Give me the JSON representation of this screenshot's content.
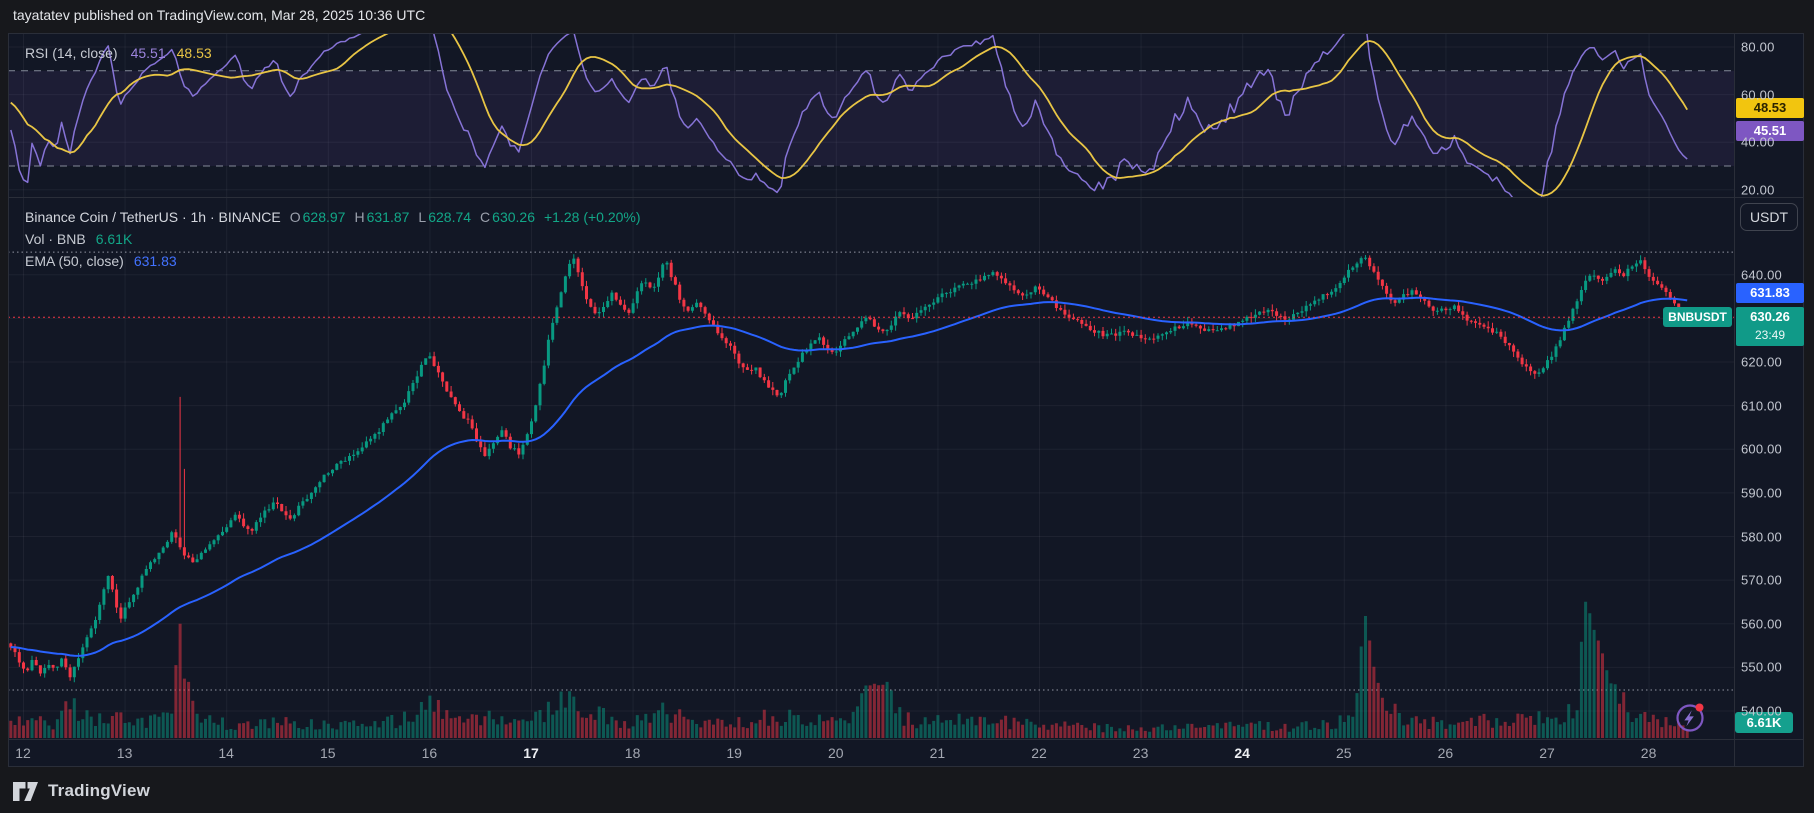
{
  "header": {
    "published_line": "tayatatev published on TradingView.com, Mar 28, 2025 10:36 UTC"
  },
  "background": {
    "outer": "#17181c",
    "chart": "#121725"
  },
  "colors": {
    "up": "#089981",
    "down": "#f23645",
    "ema": "#2962ff",
    "rsi_line": "#8673d6",
    "rsi_ma": "#e8c545",
    "price_line": "#f23645",
    "badge_blue": "#2962ff",
    "badge_green": "#109a88",
    "badge_purple": "#7e57c2",
    "badge_yellow": "#f2c50f",
    "grid": "rgba(240,243,250,0.055)"
  },
  "rsi_pane": {
    "legend": {
      "title": "RSI (14, close)",
      "value": "45.51",
      "ma_value": "48.53"
    },
    "axis_labels": [
      "80.00",
      "60.00",
      "40.00",
      "20.00"
    ],
    "axis_values": [
      80,
      60,
      40,
      20
    ],
    "badges": {
      "ma": {
        "text": "48.53",
        "bg": "#f2c50f",
        "fg": "#2b2300"
      },
      "rsi": {
        "text": "45.51",
        "bg": "#7e57c2",
        "fg": "#ffffff"
      }
    },
    "levels": {
      "upper": 70,
      "lower": 30
    }
  },
  "main_pane": {
    "legend_symbol": {
      "title": "Binance Coin / TetherUS · 1h · BINANCE",
      "open_label": "O",
      "open": "628.97",
      "high_label": "H",
      "high": "631.87",
      "low_label": "L",
      "low": "628.74",
      "close_label": "C",
      "close": "630.26",
      "change": "+1.28 (+0.20%)"
    },
    "legend_vol": {
      "label": "Vol · BNB",
      "value": "6.61K"
    },
    "legend_ema": {
      "label": "EMA (50, close)",
      "value": "631.83"
    },
    "currency_button": "USDT",
    "axis_labels": [
      "640.00",
      "620.00",
      "610.00",
      "600.00",
      "590.00",
      "580.00",
      "570.00",
      "560.00",
      "550.00",
      "540.00"
    ],
    "axis_values": [
      640,
      620,
      610,
      600,
      590,
      580,
      570,
      560,
      550,
      540
    ],
    "badges": {
      "ema": {
        "text": "631.83",
        "bg": "#2962ff"
      },
      "price": {
        "symbol": "BNBUSDT",
        "text": "630.26",
        "countdown": "23:49",
        "bg": "#109a88"
      },
      "volume": {
        "text": "6.61K",
        "bg": "#15a08e"
      }
    }
  },
  "time_axis": {
    "labels": [
      {
        "label": "12",
        "bold": false
      },
      {
        "label": "13",
        "bold": false
      },
      {
        "label": "14",
        "bold": false
      },
      {
        "label": "15",
        "bold": false
      },
      {
        "label": "16",
        "bold": false
      },
      {
        "label": "17",
        "bold": true
      },
      {
        "label": "18",
        "bold": false
      },
      {
        "label": "19",
        "bold": false
      },
      {
        "label": "20",
        "bold": false
      },
      {
        "label": "21",
        "bold": false
      },
      {
        "label": "22",
        "bold": false
      },
      {
        "label": "23",
        "bold": false
      },
      {
        "label": "24",
        "bold": true
      },
      {
        "label": "25",
        "bold": false
      },
      {
        "label": "26",
        "bold": false
      },
      {
        "label": "27",
        "bold": false
      },
      {
        "label": "28",
        "bold": false
      }
    ]
  },
  "footer": {
    "brand": "TradingView"
  },
  "chart_data": {
    "type": "candlestick",
    "symbol": "BNBUSDT",
    "exchange": "BINANCE",
    "interval": "1h",
    "current_ohlc": {
      "open": 628.97,
      "high": 631.87,
      "low": 628.74,
      "close": 630.26,
      "change": 1.28,
      "change_pct": 0.2
    },
    "current_volume": "6.61K",
    "ema": {
      "period": 50,
      "source": "close",
      "last": 631.83
    },
    "rsi": {
      "period": 14,
      "source": "close",
      "last": 45.51,
      "ma_last": 48.53,
      "upper_band": 70,
      "lower_band": 30,
      "axis_range": [
        17,
        86
      ]
    },
    "x_unit": "day of March 2025",
    "x_range": [
      11.88,
      28.42
    ],
    "visible_price_range": [
      533.5,
      657.0
    ],
    "price_line": 630.26,
    "range_dotted_lines": [
      645.2,
      544.8
    ],
    "price_anchors": [
      [
        11.88,
        556
      ],
      [
        11.96,
        553.5
      ],
      [
        12.02,
        551
      ],
      [
        12.08,
        549
      ],
      [
        12.14,
        552
      ],
      [
        12.2,
        548.5
      ],
      [
        12.28,
        551
      ],
      [
        12.36,
        549
      ],
      [
        12.42,
        552
      ],
      [
        12.5,
        547.5
      ],
      [
        12.58,
        552
      ],
      [
        12.66,
        556
      ],
      [
        12.74,
        560
      ],
      [
        12.82,
        566
      ],
      [
        12.88,
        571
      ],
      [
        12.94,
        566
      ],
      [
        13.0,
        561
      ],
      [
        13.06,
        564
      ],
      [
        13.14,
        567
      ],
      [
        13.22,
        571
      ],
      [
        13.3,
        574
      ],
      [
        13.38,
        576
      ],
      [
        13.46,
        579
      ],
      [
        13.52,
        581
      ],
      [
        13.58,
        578
      ],
      [
        13.64,
        575.5
      ],
      [
        13.72,
        574
      ],
      [
        13.8,
        576
      ],
      [
        13.88,
        578
      ],
      [
        13.96,
        580
      ],
      [
        14.04,
        582
      ],
      [
        14.12,
        585
      ],
      [
        14.2,
        583
      ],
      [
        14.28,
        581
      ],
      [
        14.36,
        584
      ],
      [
        14.44,
        586
      ],
      [
        14.52,
        588
      ],
      [
        14.6,
        585.5
      ],
      [
        14.68,
        584
      ],
      [
        14.76,
        587
      ],
      [
        14.84,
        589
      ],
      [
        14.92,
        591
      ],
      [
        15.0,
        594
      ],
      [
        15.1,
        596
      ],
      [
        15.2,
        597.5
      ],
      [
        15.3,
        599
      ],
      [
        15.4,
        601
      ],
      [
        15.5,
        603
      ],
      [
        15.6,
        606
      ],
      [
        15.7,
        608.5
      ],
      [
        15.8,
        611
      ],
      [
        15.88,
        615
      ],
      [
        15.96,
        619
      ],
      [
        16.04,
        621.5
      ],
      [
        16.12,
        618
      ],
      [
        16.2,
        614
      ],
      [
        16.28,
        611
      ],
      [
        16.36,
        608
      ],
      [
        16.44,
        606
      ],
      [
        16.52,
        601
      ],
      [
        16.6,
        598.5
      ],
      [
        16.68,
        602
      ],
      [
        16.76,
        604
      ],
      [
        16.84,
        600.5
      ],
      [
        16.92,
        599
      ],
      [
        17.0,
        603
      ],
      [
        17.08,
        609
      ],
      [
        17.16,
        618
      ],
      [
        17.24,
        628
      ],
      [
        17.32,
        635
      ],
      [
        17.4,
        641
      ],
      [
        17.46,
        644
      ],
      [
        17.52,
        639
      ],
      [
        17.6,
        634
      ],
      [
        17.68,
        630.5
      ],
      [
        17.76,
        633
      ],
      [
        17.84,
        636
      ],
      [
        17.92,
        633
      ],
      [
        18.0,
        631
      ],
      [
        18.08,
        636
      ],
      [
        18.16,
        639
      ],
      [
        18.24,
        636
      ],
      [
        18.3,
        640
      ],
      [
        18.36,
        643.5
      ],
      [
        18.42,
        640
      ],
      [
        18.5,
        635
      ],
      [
        18.58,
        631
      ],
      [
        18.66,
        634
      ],
      [
        18.74,
        632
      ],
      [
        18.82,
        629
      ],
      [
        18.9,
        626
      ],
      [
        19.0,
        624
      ],
      [
        19.08,
        620
      ],
      [
        19.16,
        617.5
      ],
      [
        19.24,
        619
      ],
      [
        19.32,
        616
      ],
      [
        19.4,
        613.5
      ],
      [
        19.48,
        612
      ],
      [
        19.56,
        616
      ],
      [
        19.64,
        619
      ],
      [
        19.72,
        622
      ],
      [
        19.8,
        624
      ],
      [
        19.88,
        625.5
      ],
      [
        19.96,
        623
      ],
      [
        20.04,
        622
      ],
      [
        20.12,
        625
      ],
      [
        20.2,
        627
      ],
      [
        20.28,
        629
      ],
      [
        20.36,
        630.5
      ],
      [
        20.44,
        628
      ],
      [
        20.52,
        626.5
      ],
      [
        20.6,
        629
      ],
      [
        20.68,
        631.5
      ],
      [
        20.76,
        630
      ],
      [
        20.84,
        631
      ],
      [
        20.92,
        632.5
      ],
      [
        21.0,
        634
      ],
      [
        21.1,
        635.5
      ],
      [
        21.2,
        636.5
      ],
      [
        21.3,
        637.5
      ],
      [
        21.4,
        638.5
      ],
      [
        21.5,
        639.5
      ],
      [
        21.6,
        640.5
      ],
      [
        21.7,
        638.5
      ],
      [
        21.8,
        636.5
      ],
      [
        21.9,
        635
      ],
      [
        22.0,
        637
      ],
      [
        22.1,
        635.5
      ],
      [
        22.2,
        633
      ],
      [
        22.3,
        631
      ],
      [
        22.4,
        629.5
      ],
      [
        22.5,
        628
      ],
      [
        22.6,
        627
      ],
      [
        22.7,
        626
      ],
      [
        22.8,
        626.5
      ],
      [
        22.9,
        627
      ],
      [
        23.0,
        626
      ],
      [
        23.1,
        625
      ],
      [
        23.2,
        626
      ],
      [
        23.3,
        627
      ],
      [
        23.4,
        628
      ],
      [
        23.5,
        629
      ],
      [
        23.6,
        628
      ],
      [
        23.7,
        627
      ],
      [
        23.8,
        627.5
      ],
      [
        23.9,
        628
      ],
      [
        24.0,
        629
      ],
      [
        24.1,
        630
      ],
      [
        24.2,
        631.5
      ],
      [
        24.3,
        632
      ],
      [
        24.4,
        630.5
      ],
      [
        24.5,
        630
      ],
      [
        24.6,
        631.5
      ],
      [
        24.7,
        633
      ],
      [
        24.8,
        634.5
      ],
      [
        24.9,
        636
      ],
      [
        25.0,
        638
      ],
      [
        25.08,
        640.5
      ],
      [
        25.16,
        642.5
      ],
      [
        25.24,
        644
      ],
      [
        25.32,
        641
      ],
      [
        25.4,
        638
      ],
      [
        25.48,
        635
      ],
      [
        25.56,
        633.5
      ],
      [
        25.64,
        635.5
      ],
      [
        25.72,
        636.5
      ],
      [
        25.8,
        634.5
      ],
      [
        25.88,
        633
      ],
      [
        25.96,
        631.5
      ],
      [
        26.04,
        632
      ],
      [
        26.12,
        633
      ],
      [
        26.2,
        631
      ],
      [
        26.28,
        629.5
      ],
      [
        26.36,
        628.5
      ],
      [
        26.44,
        628
      ],
      [
        26.52,
        627
      ],
      [
        26.6,
        625.5
      ],
      [
        26.68,
        623.5
      ],
      [
        26.76,
        621
      ],
      [
        26.84,
        618.5
      ],
      [
        26.92,
        617
      ],
      [
        27.0,
        618.5
      ],
      [
        27.08,
        621
      ],
      [
        27.16,
        624.5
      ],
      [
        27.24,
        629
      ],
      [
        27.32,
        633.5
      ],
      [
        27.4,
        637.5
      ],
      [
        27.48,
        640
      ],
      [
        27.56,
        638.5
      ],
      [
        27.64,
        640
      ],
      [
        27.72,
        641.5
      ],
      [
        27.8,
        640
      ],
      [
        27.88,
        642
      ],
      [
        27.96,
        643
      ],
      [
        28.04,
        640
      ],
      [
        28.12,
        638
      ],
      [
        28.2,
        636
      ],
      [
        28.28,
        633.5
      ],
      [
        28.36,
        631
      ],
      [
        28.42,
        630.26
      ]
    ],
    "wick_events": [
      [
        13.54,
        612
      ],
      [
        13.6,
        595.5
      ]
    ],
    "volume_anchors": [
      [
        11.88,
        0.1
      ],
      [
        12.1,
        0.12
      ],
      [
        12.3,
        0.1
      ],
      [
        12.45,
        0.22
      ],
      [
        12.55,
        0.18
      ],
      [
        12.7,
        0.12
      ],
      [
        12.9,
        0.14
      ],
      [
        13.1,
        0.1
      ],
      [
        13.3,
        0.12
      ],
      [
        13.48,
        0.16
      ],
      [
        13.54,
        1.0
      ],
      [
        13.58,
        0.45
      ],
      [
        13.63,
        0.28
      ],
      [
        13.7,
        0.2
      ],
      [
        13.8,
        0.12
      ],
      [
        14.0,
        0.1
      ],
      [
        14.3,
        0.09
      ],
      [
        14.6,
        0.11
      ],
      [
        14.9,
        0.1
      ],
      [
        15.2,
        0.09
      ],
      [
        15.5,
        0.11
      ],
      [
        15.8,
        0.14
      ],
      [
        15.95,
        0.22
      ],
      [
        16.05,
        0.26
      ],
      [
        16.2,
        0.18
      ],
      [
        16.4,
        0.12
      ],
      [
        16.6,
        0.14
      ],
      [
        16.8,
        0.11
      ],
      [
        17.0,
        0.13
      ],
      [
        17.15,
        0.2
      ],
      [
        17.3,
        0.26
      ],
      [
        17.45,
        0.28
      ],
      [
        17.6,
        0.18
      ],
      [
        17.8,
        0.13
      ],
      [
        18.0,
        0.12
      ],
      [
        18.2,
        0.14
      ],
      [
        18.35,
        0.2
      ],
      [
        18.5,
        0.13
      ],
      [
        18.7,
        0.11
      ],
      [
        18.9,
        0.1
      ],
      [
        19.1,
        0.11
      ],
      [
        19.3,
        0.14
      ],
      [
        19.45,
        0.12
      ],
      [
        19.55,
        0.24
      ],
      [
        19.65,
        0.16
      ],
      [
        19.8,
        0.12
      ],
      [
        20.0,
        0.12
      ],
      [
        20.2,
        0.14
      ],
      [
        20.36,
        0.4
      ],
      [
        20.42,
        0.37
      ],
      [
        20.5,
        0.3
      ],
      [
        20.6,
        0.18
      ],
      [
        20.8,
        0.11
      ],
      [
        21.0,
        0.12
      ],
      [
        21.2,
        0.13
      ],
      [
        21.4,
        0.11
      ],
      [
        21.6,
        0.12
      ],
      [
        21.8,
        0.1
      ],
      [
        22.0,
        0.1
      ],
      [
        22.2,
        0.09
      ],
      [
        22.4,
        0.08
      ],
      [
        22.6,
        0.07
      ],
      [
        22.8,
        0.07
      ],
      [
        23.0,
        0.06
      ],
      [
        23.2,
        0.07
      ],
      [
        23.5,
        0.08
      ],
      [
        23.8,
        0.08
      ],
      [
        24.0,
        0.1
      ],
      [
        24.2,
        0.09
      ],
      [
        24.5,
        0.08
      ],
      [
        24.8,
        0.09
      ],
      [
        25.0,
        0.12
      ],
      [
        25.12,
        0.3
      ],
      [
        25.2,
        0.85
      ],
      [
        25.3,
        0.45
      ],
      [
        25.4,
        0.22
      ],
      [
        25.6,
        0.14
      ],
      [
        25.8,
        0.11
      ],
      [
        26.0,
        0.1
      ],
      [
        26.2,
        0.11
      ],
      [
        26.4,
        0.12
      ],
      [
        26.6,
        0.11
      ],
      [
        26.8,
        0.15
      ],
      [
        27.0,
        0.13
      ],
      [
        27.15,
        0.17
      ],
      [
        27.3,
        0.25
      ],
      [
        27.38,
        1.0
      ],
      [
        27.45,
        0.92
      ],
      [
        27.55,
        0.55
      ],
      [
        27.65,
        0.32
      ],
      [
        27.8,
        0.22
      ],
      [
        27.95,
        0.16
      ],
      [
        28.1,
        0.13
      ],
      [
        28.25,
        0.11
      ],
      [
        28.42,
        0.06
      ]
    ],
    "time_ticks": [
      12,
      13,
      14,
      15,
      16,
      17,
      18,
      19,
      20,
      21,
      22,
      23,
      24,
      25,
      26,
      27,
      28
    ],
    "bold_time_ticks": [
      17,
      24
    ]
  }
}
